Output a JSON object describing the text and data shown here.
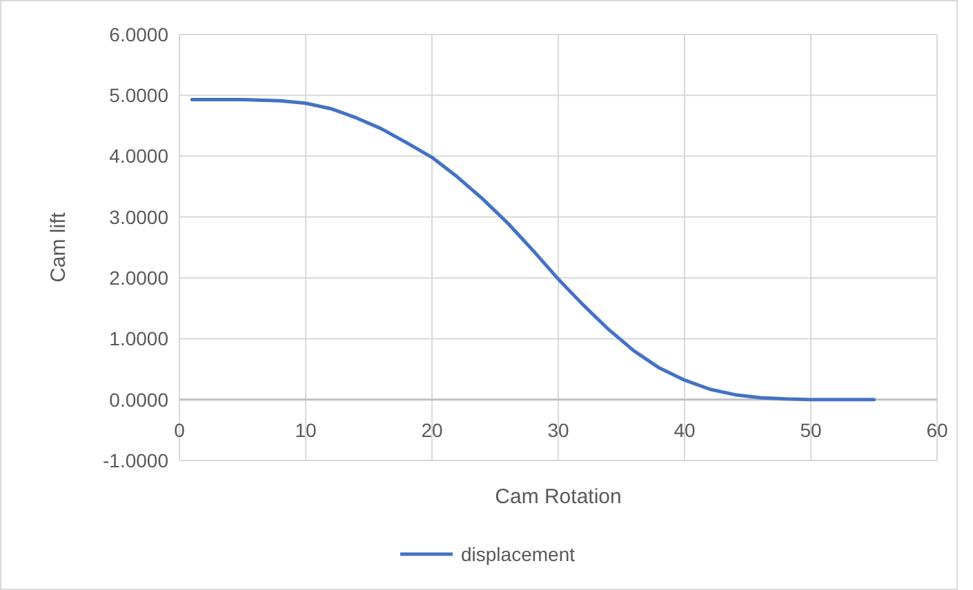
{
  "chart_data": {
    "type": "line",
    "xlabel": "Cam Rotation",
    "ylabel": "Cam lift",
    "xlim": [
      0,
      60
    ],
    "xticks": [
      0,
      10,
      20,
      30,
      40,
      50,
      60
    ],
    "ylim": [
      -1,
      6
    ],
    "yticks": [
      {
        "value": -1,
        "label": "-1.0000"
      },
      {
        "value": 0,
        "label": "0.0000"
      },
      {
        "value": 1,
        "label": "1.0000"
      },
      {
        "value": 2,
        "label": "2.0000"
      },
      {
        "value": 3,
        "label": "3.0000"
      },
      {
        "value": 4,
        "label": "4.0000"
      },
      {
        "value": 5,
        "label": "5.0000"
      },
      {
        "value": 6,
        "label": "6.0000"
      }
    ],
    "grid": true,
    "legend": "bottom",
    "marker": "none",
    "line_style": "solid",
    "series": [
      {
        "name": "displacement",
        "color": "#4472c4",
        "x": [
          1,
          5,
          8,
          10,
          12,
          14,
          16,
          18,
          20,
          22,
          24,
          26,
          28,
          30,
          32,
          34,
          36,
          38,
          40,
          42,
          44,
          46,
          48,
          50,
          55
        ],
        "values": [
          4.93,
          4.93,
          4.91,
          4.87,
          4.78,
          4.63,
          4.45,
          4.22,
          3.98,
          3.66,
          3.3,
          2.9,
          2.45,
          1.98,
          1.55,
          1.15,
          0.8,
          0.52,
          0.32,
          0.17,
          0.08,
          0.03,
          0.01,
          0,
          0
        ]
      }
    ]
  }
}
